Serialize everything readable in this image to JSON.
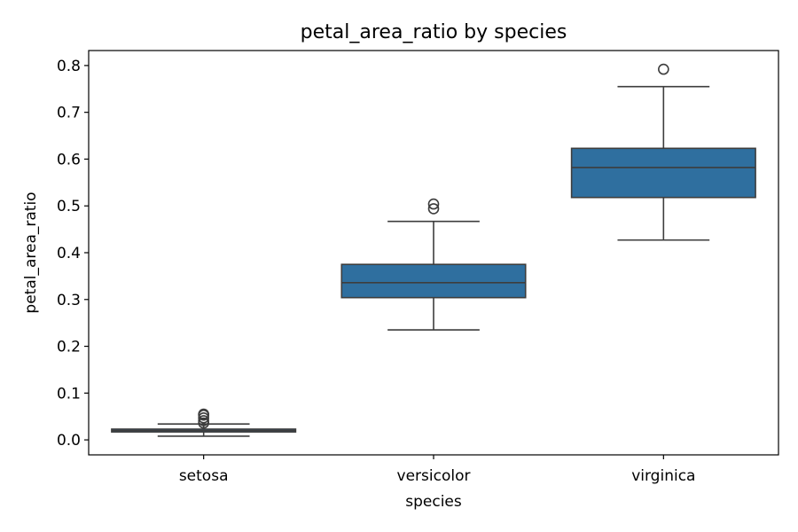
{
  "chart_data": {
    "type": "box",
    "title": "petal_area_ratio by species",
    "xlabel": "species",
    "ylabel": "petal_area_ratio",
    "categories": [
      "setosa",
      "versicolor",
      "virginica"
    ],
    "ylim": [
      -0.032,
      0.832
    ],
    "yticks": [
      0.0,
      0.1,
      0.2,
      0.3,
      0.4,
      0.5,
      0.6,
      0.7,
      0.8
    ],
    "ytick_labels": [
      "0.0",
      "0.1",
      "0.2",
      "0.3",
      "0.4",
      "0.5",
      "0.6",
      "0.7",
      "0.8"
    ],
    "grid": false,
    "legend": "none",
    "box_color": "#2f6f9f",
    "edge_color": "#3d3d3d",
    "boxes": [
      {
        "category": "setosa",
        "whisker_low": 0.008,
        "q1": 0.017,
        "median": 0.02,
        "q3": 0.023,
        "whisker_high": 0.034,
        "outliers": [
          0.036,
          0.041,
          0.047,
          0.053,
          0.055
        ]
      },
      {
        "category": "versicolor",
        "whisker_low": 0.235,
        "q1": 0.304,
        "median": 0.336,
        "q3": 0.375,
        "whisker_high": 0.467,
        "outliers": [
          0.494,
          0.504
        ]
      },
      {
        "category": "virginica",
        "whisker_low": 0.427,
        "q1": 0.518,
        "median": 0.582,
        "q3": 0.623,
        "whisker_high": 0.755,
        "outliers": [
          0.792
        ]
      }
    ]
  }
}
